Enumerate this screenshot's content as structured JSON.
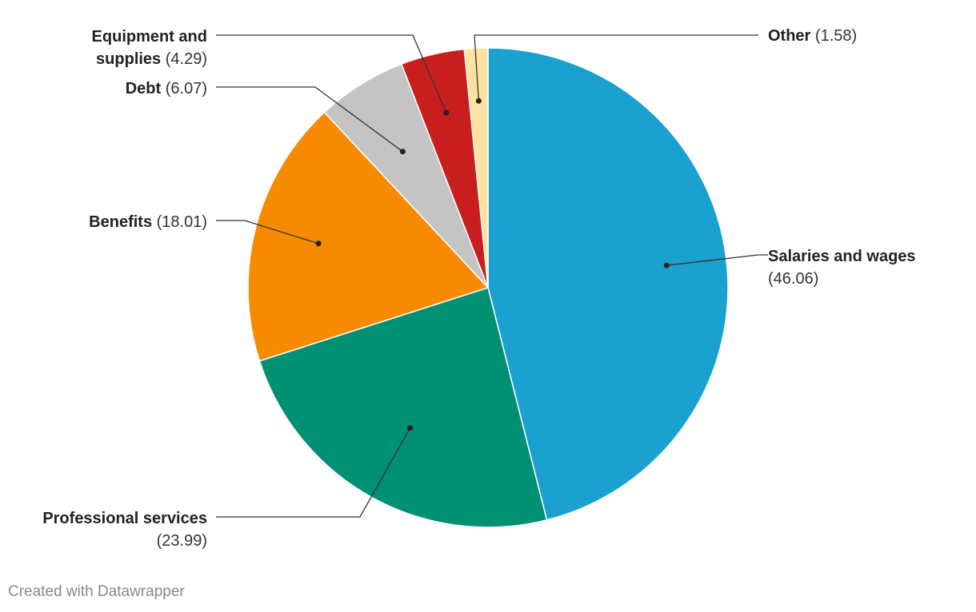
{
  "chart_data": {
    "type": "pie",
    "slices": [
      {
        "name": "Salaries and wages",
        "value": 46.06,
        "value_label": "(46.06)",
        "color": "#1ba1cf"
      },
      {
        "name": "Professional services",
        "value": 23.99,
        "value_label": "(23.99)",
        "color": "#009174"
      },
      {
        "name": "Benefits",
        "value": 18.01,
        "value_label": "(18.01)",
        "color": "#f68b00"
      },
      {
        "name": "Debt",
        "value": 6.07,
        "value_label": "(6.07)",
        "color": "#c4c4c4"
      },
      {
        "name": "Equipment and supplies",
        "value": 4.29,
        "value_label": "(4.29)",
        "color": "#c81e1e"
      },
      {
        "name": "Other",
        "value": 1.58,
        "value_label": "(1.58)",
        "color": "#fde3a0"
      }
    ],
    "start": "top",
    "direction": "clockwise"
  },
  "footer": {
    "credit": "Created with Datawrapper"
  }
}
